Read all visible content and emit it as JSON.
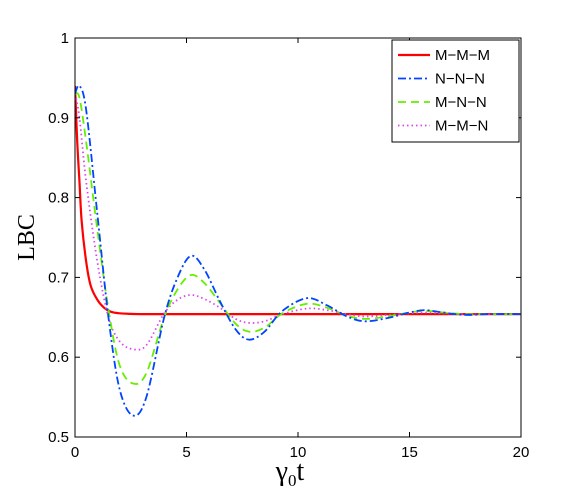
{
  "chart_data": {
    "type": "line",
    "title": "",
    "xlabel": "γ",
    "xlabel_subscript": "0",
    "xlabel_suffix": "t",
    "ylabel": "LBC",
    "xlim": [
      0,
      20
    ],
    "ylim": [
      0.5,
      1
    ],
    "xticks": [
      0,
      5,
      10,
      15,
      20
    ],
    "yticks": [
      0.5,
      0.6,
      0.7,
      0.8,
      0.9,
      1
    ],
    "xtick_labels": [
      "0",
      "5",
      "10",
      "15",
      "20"
    ],
    "ytick_labels": [
      "0.5",
      "0.6",
      "0.7",
      "0.8",
      "0.9",
      "1"
    ],
    "grid": false,
    "legend_position": "top-right",
    "series": [
      {
        "name": "M−M−M",
        "color": "#ff0000",
        "dash": "solid",
        "x": [
          0,
          0.1,
          0.2,
          0.3,
          0.5,
          0.7,
          1.0,
          1.3,
          1.6,
          2.0,
          3,
          5,
          10,
          15,
          20
        ],
        "y": [
          0.94,
          0.87,
          0.82,
          0.77,
          0.72,
          0.69,
          0.672,
          0.662,
          0.657,
          0.655,
          0.654,
          0.654,
          0.654,
          0.654,
          0.654
        ]
      },
      {
        "name": "N−N−N",
        "color": "#0044ff",
        "dash": "dashdot",
        "x": [
          0,
          0.2,
          0.5,
          1.0,
          1.5,
          2.0,
          2.6,
          3.2,
          4.0,
          4.6,
          5.2,
          5.8,
          6.5,
          7.2,
          7.8,
          8.5,
          9.3,
          10.4,
          11.3,
          12.2,
          13.0,
          14.0,
          15.0,
          15.7,
          16.5,
          17.5,
          18.5,
          20.0
        ],
        "y": [
          0.93,
          0.94,
          0.91,
          0.78,
          0.65,
          0.56,
          0.527,
          0.55,
          0.65,
          0.7,
          0.727,
          0.71,
          0.67,
          0.635,
          0.622,
          0.632,
          0.658,
          0.674,
          0.665,
          0.651,
          0.645,
          0.649,
          0.656,
          0.659,
          0.656,
          0.653,
          0.654,
          0.654
        ]
      },
      {
        "name": "M−N−N",
        "color": "#66ee00",
        "dash": "dashed",
        "x": [
          0,
          0.2,
          0.5,
          1.0,
          1.5,
          2.0,
          2.6,
          3.2,
          4.0,
          4.6,
          5.2,
          5.8,
          6.5,
          7.2,
          7.8,
          8.5,
          9.3,
          10.4,
          11.3,
          12.2,
          13.0,
          14.0,
          15.0,
          15.7,
          16.5,
          17.5,
          18.5,
          20.0
        ],
        "y": [
          0.93,
          0.925,
          0.87,
          0.76,
          0.66,
          0.59,
          0.567,
          0.58,
          0.65,
          0.685,
          0.703,
          0.693,
          0.668,
          0.642,
          0.632,
          0.637,
          0.655,
          0.667,
          0.662,
          0.652,
          0.648,
          0.651,
          0.656,
          0.658,
          0.656,
          0.654,
          0.654,
          0.654
        ]
      },
      {
        "name": "M−M−N",
        "color": "#dd44ee",
        "dash": "dotted",
        "x": [
          0,
          0.2,
          0.5,
          1.0,
          1.5,
          2.0,
          2.6,
          3.2,
          4.0,
          4.6,
          5.2,
          5.8,
          6.5,
          7.2,
          7.8,
          8.5,
          9.3,
          10.4,
          11.3,
          12.2,
          13.0,
          14.0,
          15.0,
          15.7,
          16.5,
          17.5,
          18.5,
          20.0
        ],
        "y": [
          0.93,
          0.9,
          0.82,
          0.72,
          0.65,
          0.62,
          0.61,
          0.615,
          0.655,
          0.672,
          0.678,
          0.673,
          0.662,
          0.648,
          0.643,
          0.645,
          0.654,
          0.661,
          0.659,
          0.654,
          0.651,
          0.653,
          0.655,
          0.656,
          0.655,
          0.654,
          0.654,
          0.654
        ]
      }
    ]
  }
}
